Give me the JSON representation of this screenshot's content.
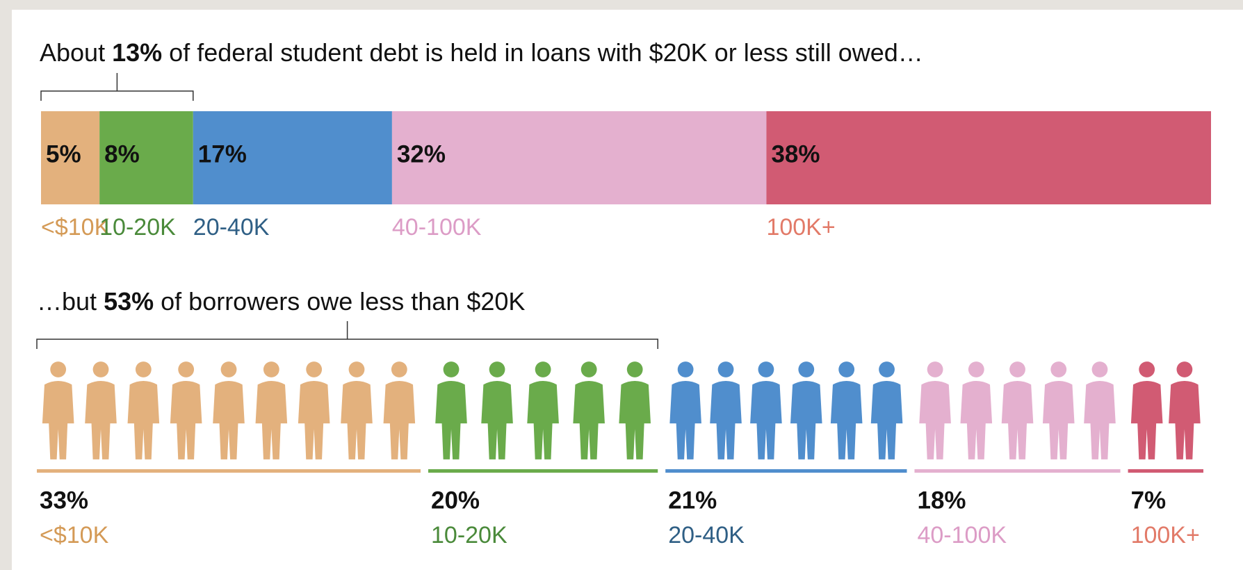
{
  "chart_data": [
    {
      "type": "stacked-bar",
      "title": [
        "About",
        "13%",
        "of federal student debt is held in loans with $20K or less still owed…"
      ],
      "series": [
        {
          "name": "<$10K",
          "color": "#e3b17d",
          "label_color": "#d49a56",
          "values": [
            5
          ],
          "value_labels": [
            "5%"
          ]
        },
        {
          "name": "10-20K",
          "color": "#6aab4b",
          "label_color": "#4a8a3a",
          "values": [
            8
          ],
          "value_labels": [
            "8%"
          ]
        },
        {
          "name": "20-40K",
          "color": "#508ecd",
          "label_color": "#2f5f85",
          "values": [
            17
          ],
          "value_labels": [
            "17%"
          ]
        },
        {
          "name": "40-100K",
          "color": "#e4b0cf",
          "label_color": "#dc9cc6",
          "values": [
            32
          ],
          "value_labels": [
            "32%"
          ]
        },
        {
          "name": "100K+",
          "color": "#d15b73",
          "label_color": "#e27a68",
          "values": [
            38
          ],
          "value_labels": [
            "38%"
          ]
        }
      ]
    },
    {
      "type": "pictogram",
      "title": [
        "…but",
        "53%",
        "of borrowers owe less than $20K"
      ],
      "categories": [
        "<$10K",
        "10-20K",
        "20-40K",
        "40-100K",
        "100K+"
      ],
      "values": [
        33,
        20,
        21,
        18,
        7
      ],
      "value_labels": [
        "33%",
        "20%",
        "21%",
        "18%",
        "7%"
      ],
      "colors": [
        "#e3b17d",
        "#6aab4b",
        "#508ecd",
        "#e4b0cf",
        "#d15b73"
      ],
      "label_colors": [
        "#d49a56",
        "#4a8a3a",
        "#2f5f85",
        "#dc9cc6",
        "#e27a68"
      ]
    }
  ]
}
